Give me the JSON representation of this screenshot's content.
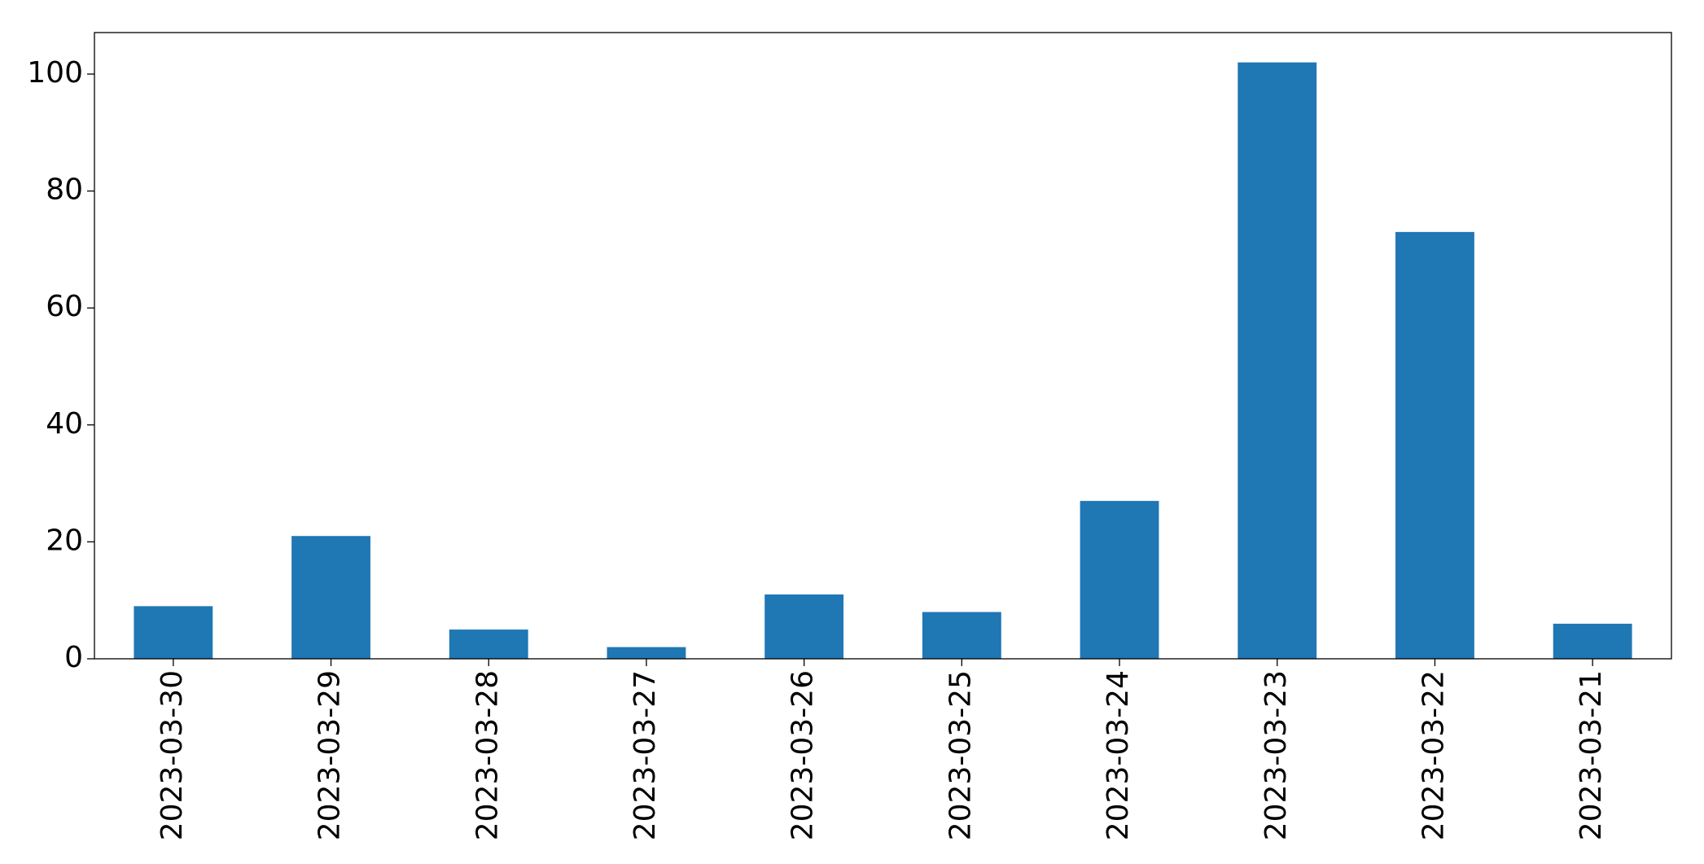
{
  "chart_data": {
    "type": "bar",
    "categories": [
      "2023-03-30",
      "2023-03-29",
      "2023-03-28",
      "2023-03-27",
      "2023-03-26",
      "2023-03-25",
      "2023-03-24",
      "2023-03-23",
      "2023-03-22",
      "2023-03-21"
    ],
    "values": [
      9,
      21,
      5,
      2,
      11,
      8,
      27,
      102,
      73,
      6
    ],
    "color": "#1f77b4",
    "ylim": [
      0,
      107.1
    ],
    "yticks": [
      0,
      20,
      40,
      60,
      80,
      100
    ],
    "grid": false
  }
}
